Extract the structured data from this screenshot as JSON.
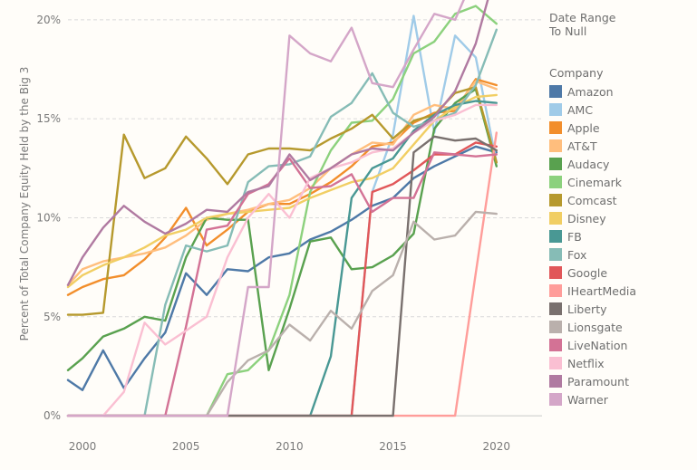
{
  "legend": {
    "date_title": "Date Range\n To Null",
    "company_title": "Company"
  },
  "chart_data": {
    "type": "line",
    "title": "",
    "xlabel": "",
    "ylabel": "Percent of Total Company Equity Held by the Big 3",
    "xlim": [
      1999.3,
      2022.2
    ],
    "ylim": [
      -0.5,
      21
    ],
    "x_ticks": [
      {
        "value": 2000,
        "label": "2000"
      },
      {
        "value": 2005,
        "label": "2005"
      },
      {
        "value": 2010,
        "label": "2010"
      },
      {
        "value": 2015,
        "label": "2015"
      },
      {
        "value": 2020,
        "label": "2020"
      }
    ],
    "y_ticks": [
      {
        "value": 0,
        "label": "0%"
      },
      {
        "value": 5,
        "label": "5%"
      },
      {
        "value": 10,
        "label": "10%"
      },
      {
        "value": 15,
        "label": "15%"
      },
      {
        "value": 20,
        "label": "20%"
      }
    ],
    "grid": "horizontal dashed",
    "legend_position": "right",
    "x": [
      1999.3,
      2000,
      2001,
      2002,
      2003,
      2004,
      2005,
      2006,
      2007,
      2008,
      2009,
      2010,
      2011,
      2012,
      2013,
      2014,
      2015,
      2016,
      2017,
      2018,
      2019,
      2020
    ],
    "series": [
      {
        "name": "Amazon",
        "color": "#4e79a7",
        "values": [
          1.8,
          1.3,
          3.3,
          1.4,
          2.9,
          4.2,
          7.2,
          6.1,
          7.4,
          7.3,
          8.0,
          8.2,
          8.9,
          9.3,
          9.9,
          10.6,
          11.0,
          12.0,
          12.6,
          13.1,
          13.6,
          13.3
        ]
      },
      {
        "name": "AMC",
        "color": "#a0cbe8",
        "values": [
          0,
          0,
          0,
          0,
          0,
          0,
          0,
          0,
          0,
          0,
          0,
          0,
          0,
          0,
          0,
          11.3,
          14.2,
          20.2,
          14.3,
          19.2,
          18.1,
          12.8
        ]
      },
      {
        "name": "Apple",
        "color": "#f28e2b",
        "values": [
          6.1,
          6.5,
          6.9,
          7.1,
          7.9,
          9.0,
          10.5,
          8.6,
          9.4,
          10.3,
          10.7,
          10.7,
          11.2,
          11.8,
          12.6,
          13.6,
          13.8,
          14.8,
          15.3,
          15.4,
          17.0,
          16.7
        ]
      },
      {
        "name": "AT&T",
        "color": "#ffbe7d",
        "values": [
          6.6,
          7.4,
          7.8,
          8.0,
          8.2,
          8.5,
          9.1,
          9.9,
          10.2,
          10.4,
          10.7,
          10.9,
          11.5,
          12.5,
          13.2,
          13.8,
          13.7,
          15.2,
          15.7,
          15.5,
          16.9,
          16.5
        ]
      },
      {
        "name": "Audacy",
        "color": "#59a14f",
        "values": [
          2.3,
          2.9,
          4.0,
          4.4,
          5.0,
          4.8,
          8.0,
          10.0,
          9.9,
          9.9,
          2.3,
          5.4,
          8.8,
          9.0,
          7.4,
          7.5,
          8.1,
          9.2,
          14.5,
          15.8,
          16.5,
          12.6
        ]
      },
      {
        "name": "Cinemark",
        "color": "#8cd17d",
        "values": [
          0,
          0,
          0,
          0,
          0,
          0,
          0,
          0,
          2.1,
          2.3,
          3.3,
          6.1,
          11.3,
          13.4,
          14.8,
          14.9,
          16.0,
          18.3,
          18.9,
          20.3,
          20.7,
          19.8
        ]
      },
      {
        "name": "Comcast",
        "color": "#b6992d",
        "values": [
          5.1,
          5.1,
          5.2,
          14.2,
          12.0,
          12.5,
          14.1,
          13.0,
          11.7,
          13.2,
          13.5,
          13.5,
          13.4,
          14.0,
          14.5,
          15.2,
          14.0,
          14.9,
          15.2,
          16.3,
          16.6,
          12.8
        ]
      },
      {
        "name": "Disney",
        "color": "#f1ce63",
        "values": [
          6.5,
          7.1,
          7.6,
          8.0,
          8.5,
          9.1,
          9.4,
          10.0,
          10.2,
          10.3,
          10.4,
          10.5,
          11.0,
          11.4,
          11.8,
          12.0,
          12.5,
          13.7,
          14.9,
          15.6,
          16.1,
          16.2
        ]
      },
      {
        "name": "FB",
        "color": "#499894",
        "values": [
          0,
          0,
          0,
          0,
          0,
          0,
          0,
          0,
          0,
          0,
          0,
          0,
          0,
          3.0,
          11.0,
          12.5,
          13.0,
          14.4,
          15.2,
          15.7,
          15.9,
          15.8
        ]
      },
      {
        "name": "Fox",
        "color": "#86bcb6",
        "values": [
          0,
          0,
          0,
          0,
          0,
          5.6,
          8.6,
          8.3,
          8.6,
          11.8,
          12.6,
          12.7,
          13.1,
          15.1,
          15.8,
          17.3,
          15.3,
          14.6,
          14.9,
          15.3,
          16.7,
          19.5
        ]
      },
      {
        "name": "Google",
        "color": "#e15759",
        "values": [
          0,
          0,
          0,
          0,
          0,
          0,
          0,
          0,
          0,
          0,
          0,
          0,
          0,
          0,
          0,
          11.3,
          11.7,
          12.4,
          13.2,
          13.2,
          13.8,
          13.6
        ]
      },
      {
        "name": "IHeartMedia",
        "color": "#ff9d9a",
        "values": [
          0,
          0,
          0,
          0,
          0,
          0,
          0,
          0,
          0,
          0,
          0,
          0,
          0,
          0,
          0,
          0,
          0,
          0,
          0,
          0,
          7.2,
          14.3
        ]
      },
      {
        "name": "Liberty",
        "color": "#79706e",
        "values": [
          0,
          0,
          0,
          0,
          0,
          0,
          0,
          0,
          0,
          0,
          0,
          0,
          0,
          0,
          0,
          0,
          0,
          13.3,
          14.1,
          13.9,
          14.0,
          13.4
        ]
      },
      {
        "name": "Lionsgate",
        "color": "#bab0ac",
        "values": [
          0,
          0,
          0,
          0,
          0,
          0,
          0,
          0,
          1.7,
          2.8,
          3.3,
          4.6,
          3.8,
          5.3,
          4.4,
          6.3,
          7.1,
          9.8,
          8.9,
          9.1,
          10.3,
          10.2
        ]
      },
      {
        "name": "LiveNation",
        "color": "#d37295",
        "values": [
          0,
          0,
          0,
          0,
          0,
          0,
          4.5,
          9.4,
          9.6,
          11.2,
          11.7,
          13.0,
          11.5,
          11.6,
          12.2,
          10.3,
          11.0,
          11.0,
          13.3,
          13.2,
          13.1,
          13.2
        ]
      },
      {
        "name": "Netflix",
        "color": "#fabfd2",
        "values": [
          0,
          0,
          0,
          1.2,
          4.7,
          3.6,
          4.3,
          5.0,
          8.0,
          10.0,
          11.2,
          10.0,
          12.0,
          12.5,
          12.8,
          13.3,
          13.5,
          14.3,
          14.9,
          15.2,
          15.7,
          15.7
        ]
      },
      {
        "name": "Paramount",
        "color": "#b07aa1",
        "values": [
          6.6,
          8.0,
          9.5,
          10.6,
          9.8,
          9.2,
          9.7,
          10.4,
          10.3,
          11.3,
          11.6,
          13.2,
          11.9,
          12.5,
          13.2,
          13.5,
          13.4,
          14.3,
          15.1,
          16.4,
          18.8,
          22.6
        ]
      },
      {
        "name": "Warner",
        "color": "#d4a6c8",
        "values": [
          0,
          0,
          0,
          0,
          0,
          0,
          0,
          0,
          0,
          6.5,
          6.5,
          19.2,
          18.3,
          17.9,
          19.6,
          16.8,
          16.6,
          18.5,
          20.3,
          20.0,
          22.4,
          21.9
        ]
      }
    ]
  }
}
